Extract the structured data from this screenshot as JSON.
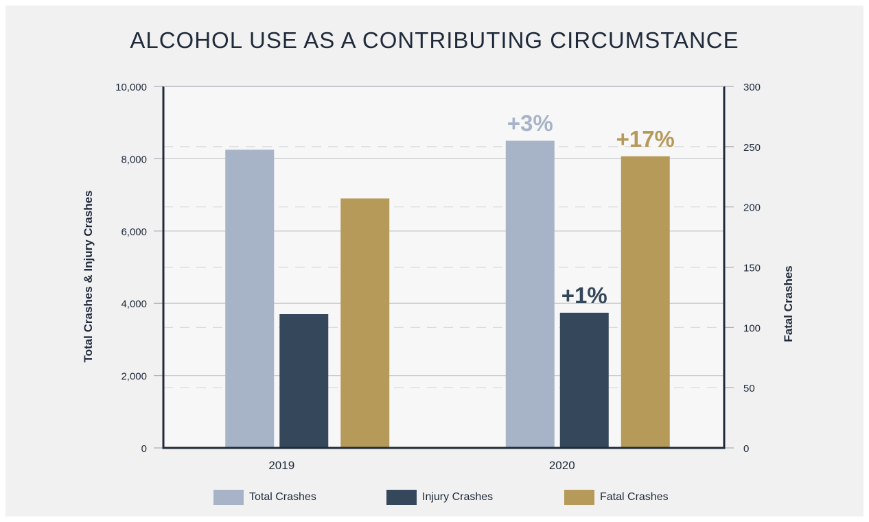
{
  "chart_data": {
    "type": "bar",
    "title": "ALCOHOL USE AS A CONTRIBUTING CIRCUMSTANCE",
    "categories": [
      "2019",
      "2020"
    ],
    "y_left": {
      "label": "Total Crashes & Injury Crashes",
      "range": [
        0,
        10000
      ],
      "ticks": [
        0,
        2000,
        4000,
        6000,
        8000,
        10000
      ],
      "tick_labels": [
        "0",
        "2,000",
        "4,000",
        "6,000",
        "8,000",
        "10,000"
      ]
    },
    "y_right": {
      "label": "Fatal Crashes",
      "range": [
        0,
        300
      ],
      "ticks": [
        0,
        50,
        100,
        150,
        200,
        250,
        300
      ],
      "tick_labels": [
        "0",
        "50",
        "100",
        "150",
        "200",
        "250",
        "300"
      ]
    },
    "series": [
      {
        "name": "Total Crashes",
        "axis": "left",
        "color": "#a7b4c7",
        "values": [
          8250,
          8500
        ],
        "labels": [
          "",
          "+3%"
        ]
      },
      {
        "name": "Injury Crashes",
        "axis": "left",
        "color": "#35475a",
        "values": [
          3700,
          3740
        ],
        "labels": [
          "",
          "+1%"
        ]
      },
      {
        "name": "Fatal Crashes",
        "axis": "right",
        "color": "#b69a5a",
        "values": [
          207,
          242
        ],
        "labels": [
          "",
          "+17%"
        ]
      }
    ],
    "grid": true,
    "legend_position": "bottom"
  }
}
